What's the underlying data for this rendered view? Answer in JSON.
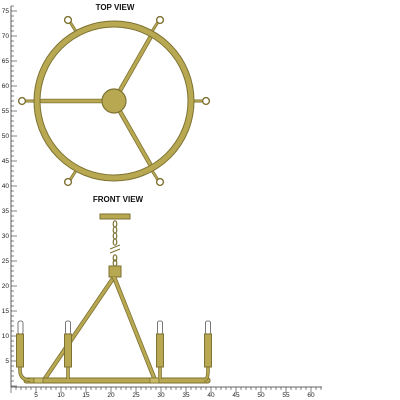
{
  "titles": {
    "top_view": "TOP VIEW",
    "front_view": "FRONT VIEW"
  },
  "rulers": {
    "left_labels": [
      "75",
      "70",
      "65",
      "60",
      "55",
      "50",
      "45",
      "40",
      "35",
      "30",
      "25",
      "20",
      "15",
      "10",
      "5"
    ],
    "bottom_labels": [
      "5",
      "10",
      "15",
      "20",
      "25",
      "30",
      "35",
      "40",
      "45",
      "50",
      "55",
      "60"
    ]
  },
  "colors": {
    "brass": "#b8a852",
    "brass_stroke": "#7d7232",
    "candle": "#ffffff",
    "ruler": "#333333"
  }
}
